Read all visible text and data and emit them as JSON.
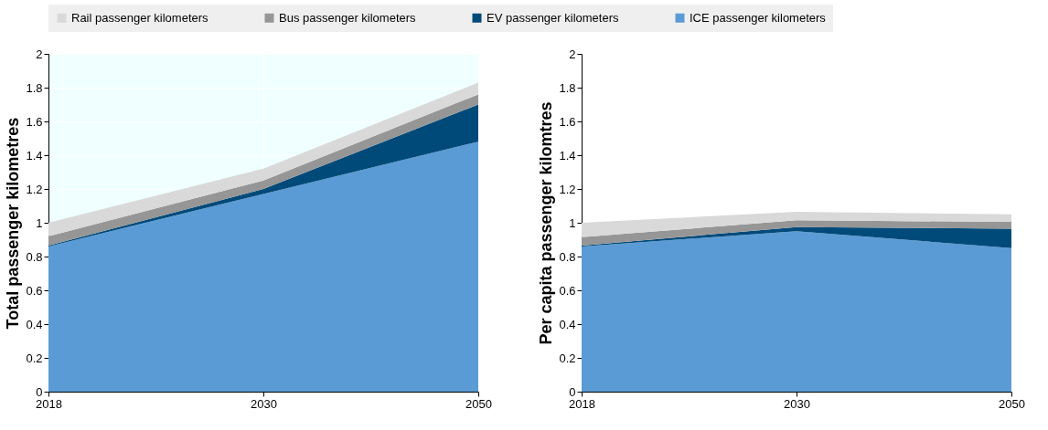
{
  "chart_data": [
    {
      "type": "area",
      "stacked": true,
      "ylabel": "Total passenger kilometres",
      "categories": [
        "2018",
        "2030",
        "2050"
      ],
      "ylim": [
        0,
        2
      ],
      "yticks": [
        0,
        0.2,
        0.4,
        0.6,
        0.8,
        1,
        1.2,
        1.4,
        1.6,
        1.8,
        2
      ],
      "grid": true,
      "legend": "top",
      "series": [
        {
          "name": "ICE passenger kilometers",
          "color": "#5b9bd5",
          "values": [
            0.86,
            1.17,
            1.48
          ]
        },
        {
          "name": "EV passenger kilometers",
          "color": "#004a7a",
          "values": [
            0.005,
            0.03,
            0.22
          ]
        },
        {
          "name": "Bus passenger kilometers",
          "color": "#969696",
          "values": [
            0.055,
            0.05,
            0.06
          ]
        },
        {
          "name": "Rail passenger kilometers",
          "color": "#d9d9d9",
          "values": [
            0.08,
            0.07,
            0.07
          ]
        }
      ]
    },
    {
      "type": "area",
      "stacked": true,
      "ylabel": "Per capita passenger kilomtres",
      "categories": [
        "2018",
        "2030",
        "2050"
      ],
      "ylim": [
        0,
        2
      ],
      "yticks": [
        0,
        0.2,
        0.4,
        0.6,
        0.8,
        1,
        1.2,
        1.4,
        1.6,
        1.8,
        2
      ],
      "legend": "top",
      "series": [
        {
          "name": "ICE passenger kilometers",
          "color": "#5b9bd5",
          "values": [
            0.86,
            0.95,
            0.85
          ]
        },
        {
          "name": "EV passenger kilometers",
          "color": "#004a7a",
          "values": [
            0.005,
            0.025,
            0.115
          ]
        },
        {
          "name": "Bus passenger kilometers",
          "color": "#969696",
          "values": [
            0.05,
            0.04,
            0.04
          ]
        },
        {
          "name": "Rail passenger kilometers",
          "color": "#d9d9d9",
          "values": [
            0.085,
            0.05,
            0.045
          ]
        }
      ]
    }
  ]
}
